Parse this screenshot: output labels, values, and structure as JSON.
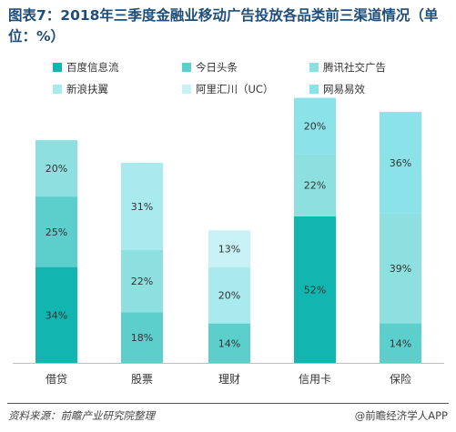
{
  "title": "图表7：2018年三季度金融业移动广告投放各品类前三渠道情况（单位：%）",
  "source": "资料来源：前瞻产业研究院整理",
  "brand": "@前瞻经济学人APP",
  "chart_data": {
    "type": "bar",
    "stacked": true,
    "categories": [
      "借贷",
      "股票",
      "理财",
      "信用卡",
      "保险"
    ],
    "legend_position": "top",
    "grid": false,
    "series": [
      {
        "name": "百度信息流",
        "color": "#13b5b1",
        "values": [
          34,
          null,
          null,
          52,
          null
        ]
      },
      {
        "name": "今日头条",
        "color": "#5ccfcd",
        "values": [
          25,
          18,
          14,
          null,
          14
        ]
      },
      {
        "name": "腾讯社交广告",
        "color": "#8ee0e0",
        "values": [
          20,
          22,
          null,
          22,
          39
        ]
      },
      {
        "name": "新浪扶翼",
        "color": "#a8eaee",
        "values": [
          null,
          31,
          20,
          null,
          null
        ]
      },
      {
        "name": "阿里汇川（UC）",
        "color": "#c8f2f5",
        "values": [
          null,
          null,
          13,
          null,
          null
        ]
      },
      {
        "name": "网易易效",
        "color": "#8be2e8",
        "values": [
          null,
          null,
          null,
          20,
          36
        ]
      }
    ]
  }
}
